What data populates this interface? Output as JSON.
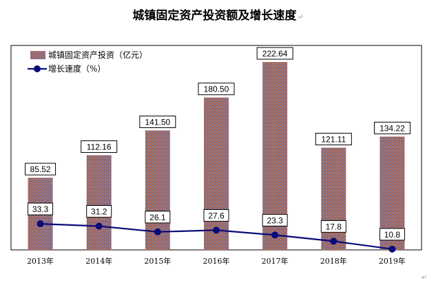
{
  "chart_data": {
    "type": "bar",
    "title": "城镇固定资产投资额及增长速度",
    "categories": [
      "2013年",
      "2014年",
      "2015年",
      "2016年",
      "2017年",
      "2018年",
      "2019年"
    ],
    "series": [
      {
        "name": "城镇固定资产投资（亿元）",
        "type": "bar",
        "values": [
          85.52,
          112.16,
          141.5,
          180.5,
          222.64,
          121.11,
          134.22
        ],
        "labels": [
          "85.52",
          "112.16",
          "141.50",
          "180.50",
          "222.64",
          "121.11",
          "134.22"
        ],
        "color": "#4a5fb4"
      },
      {
        "name": "增长速度（%）",
        "type": "line",
        "values": [
          33.3,
          31.2,
          26.1,
          27.6,
          23.3,
          17.8,
          10.8
        ],
        "labels": [
          "33.3",
          "31.2",
          "26.1",
          "27.6",
          "23.3",
          "17.8",
          "10.8"
        ],
        "color": "#0a0a78"
      }
    ],
    "legend_position": "top-left",
    "grid": false
  }
}
